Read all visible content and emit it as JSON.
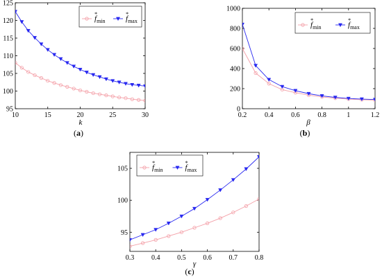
{
  "chart_data": [
    {
      "type": "line",
      "panel_label": "a",
      "xlabel": "k",
      "ylabel": "",
      "xlim": [
        10,
        30
      ],
      "ylim": [
        95,
        125
      ],
      "xticks": [
        10,
        15,
        20,
        25,
        30
      ],
      "yticks": [
        95,
        100,
        105,
        110,
        115,
        120,
        125
      ],
      "legend_position": "top-right",
      "grid": false,
      "x": [
        10,
        11,
        12,
        13,
        14,
        15,
        16,
        17,
        18,
        19,
        20,
        21,
        22,
        23,
        24,
        25,
        26,
        27,
        28,
        29,
        30
      ],
      "series": [
        {
          "name": "f*min",
          "label_main": "f",
          "label_sup": "*",
          "label_sub": "min",
          "color": "#f4a0a8",
          "marker": "circle",
          "values": [
            108.0,
            106.6,
            105.4,
            104.5,
            103.7,
            102.9,
            102.3,
            101.7,
            101.2,
            100.7,
            100.2,
            99.8,
            99.4,
            99.1,
            98.8,
            98.5,
            98.2,
            98.0,
            97.7,
            97.5,
            97.3
          ]
        },
        {
          "name": "f*max",
          "label_main": "f",
          "label_sup": "*",
          "label_sub": "max",
          "color": "#2828f0",
          "marker": "triangle",
          "values": [
            122.5,
            119.6,
            117.1,
            115.1,
            113.3,
            111.7,
            110.3,
            109.1,
            108.0,
            107.0,
            106.1,
            105.3,
            104.6,
            104.0,
            103.4,
            102.9,
            102.5,
            102.1,
            101.8,
            101.6,
            101.4
          ]
        }
      ]
    },
    {
      "type": "line",
      "panel_label": "b",
      "xlabel": "β",
      "ylabel": "",
      "xlim": [
        0.2,
        1.2
      ],
      "ylim": [
        0,
        1000
      ],
      "xticks": [
        0.2,
        0.4,
        0.6,
        0.8,
        1,
        1.2
      ],
      "yticks": [
        0,
        200,
        400,
        600,
        800,
        1000
      ],
      "legend_position": "top-right",
      "grid": false,
      "x": [
        0.2,
        0.3,
        0.4,
        0.5,
        0.6,
        0.7,
        0.8,
        0.9,
        1.0,
        1.1,
        1.2
      ],
      "series": [
        {
          "name": "f*min",
          "label_main": "f",
          "label_sup": "*",
          "label_sub": "min",
          "color": "#f4a0a8",
          "marker": "circle",
          "values": [
            600,
            355,
            250,
            190,
            160,
            135,
            118,
            105,
            96,
            90,
            85
          ]
        },
        {
          "name": "f*max",
          "label_main": "f",
          "label_sup": "*",
          "label_sub": "max",
          "color": "#2828f0",
          "marker": "triangle",
          "values": [
            840,
            430,
            290,
            220,
            180,
            150,
            128,
            113,
            102,
            96,
            92
          ]
        }
      ]
    },
    {
      "type": "line",
      "panel_label": "c",
      "xlabel": "γ",
      "ylabel": "",
      "xlim": [
        0.3,
        0.8
      ],
      "ylim": [
        92,
        107.5
      ],
      "xticks": [
        0.3,
        0.4,
        0.5,
        0.6,
        0.7,
        0.8
      ],
      "yticks": [
        95,
        100,
        105
      ],
      "legend_position": "top-left",
      "grid": false,
      "x": [
        0.3,
        0.35,
        0.4,
        0.45,
        0.5,
        0.55,
        0.6,
        0.65,
        0.7,
        0.75,
        0.8
      ],
      "series": [
        {
          "name": "f*min",
          "label_main": "f",
          "label_sup": "*",
          "label_sub": "min",
          "color": "#f4a0a8",
          "marker": "circle",
          "values": [
            92.8,
            93.3,
            93.8,
            94.4,
            95.0,
            95.7,
            96.4,
            97.2,
            98.1,
            99.1,
            100.2
          ]
        },
        {
          "name": "f*max",
          "label_main": "f",
          "label_sup": "*",
          "label_sub": "max",
          "color": "#2828f0",
          "marker": "triangle",
          "values": [
            93.8,
            94.6,
            95.4,
            96.4,
            97.5,
            98.7,
            100.1,
            101.6,
            103.2,
            104.9,
            106.8
          ]
        }
      ]
    }
  ]
}
